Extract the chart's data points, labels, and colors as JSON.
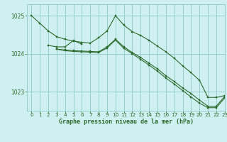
{
  "bg_color": "#cff0f0",
  "grid_color": "#99cccc",
  "line_color": "#2d6a2d",
  "marker_color": "#2d6a2d",
  "title": "Graphe pression niveau de la mer (hPa)",
  "title_color": "#2d6a2d",
  "xlim": [
    -0.5,
    23
  ],
  "ylim": [
    1022.5,
    1025.3
  ],
  "yticks": [
    1023,
    1024,
    1025
  ],
  "xticks": [
    0,
    1,
    2,
    3,
    4,
    5,
    6,
    7,
    8,
    9,
    10,
    11,
    12,
    13,
    14,
    15,
    16,
    17,
    18,
    19,
    20,
    21,
    22,
    23
  ],
  "series": [
    [
      1025.0,
      1024.8,
      1024.6,
      1024.45,
      1024.38,
      1024.33,
      1024.3,
      1024.28,
      1024.42,
      1024.6,
      1025.0,
      1024.75,
      1024.58,
      1024.48,
      1024.35,
      1024.2,
      1024.05,
      1023.88,
      1023.68,
      1023.5,
      1023.3,
      1022.85,
      1022.85,
      1022.9
    ],
    [
      null,
      null,
      1024.22,
      1024.18,
      1024.18,
      1024.35,
      1024.25,
      null,
      null,
      null,
      null,
      null,
      null,
      null,
      null,
      null,
      null,
      null,
      null,
      null,
      null,
      null,
      null,
      null
    ],
    [
      null,
      null,
      null,
      1024.12,
      1024.1,
      1024.08,
      1024.07,
      1024.06,
      1024.05,
      1024.18,
      1024.38,
      1024.18,
      1024.03,
      1023.9,
      1023.75,
      1023.6,
      1023.42,
      1023.27,
      1023.1,
      1022.95,
      1022.78,
      1022.62,
      1022.62,
      1022.88
    ],
    [
      null,
      null,
      null,
      1024.12,
      1024.08,
      1024.06,
      1024.05,
      1024.04,
      1024.03,
      1024.15,
      1024.36,
      1024.14,
      1024.0,
      1023.85,
      1023.7,
      1023.54,
      1023.36,
      1023.2,
      1023.03,
      1022.86,
      1022.7,
      1022.58,
      1022.58,
      1022.84
    ]
  ]
}
